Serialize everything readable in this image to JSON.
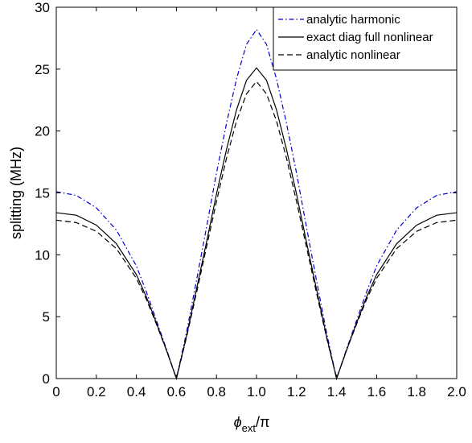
{
  "chart_data": {
    "type": "line",
    "title": "",
    "xlabel": "ϕ",
    "xlabel_sub": "ext",
    "xlabel_suffix": "/π",
    "ylabel": "splitting (MHz)",
    "xlim": [
      0,
      2.0
    ],
    "ylim": [
      0,
      30
    ],
    "xticks": [
      0,
      0.2,
      0.4,
      0.6,
      0.8,
      1.0,
      1.2,
      1.4,
      1.6,
      1.8,
      2.0
    ],
    "xtick_labels": [
      "0",
      "0.2",
      "0.4",
      "0.6",
      "0.8",
      "1.0",
      "1.2",
      "1.4",
      "1.6",
      "1.8",
      "2.0"
    ],
    "yticks": [
      0,
      5,
      10,
      15,
      20,
      25,
      30
    ],
    "ytick_labels": [
      "0",
      "5",
      "10",
      "15",
      "20",
      "25",
      "30"
    ],
    "grid": false,
    "legend_position": "top-right",
    "x": [
      0,
      0.1,
      0.2,
      0.3,
      0.4,
      0.45,
      0.5,
      0.55,
      0.6,
      0.65,
      0.7,
      0.75,
      0.8,
      0.85,
      0.9,
      0.95,
      1.0,
      1.05,
      1.1,
      1.15,
      1.2,
      1.25,
      1.3,
      1.35,
      1.4,
      1.45,
      1.5,
      1.55,
      1.6,
      1.7,
      1.8,
      1.9,
      2.0
    ],
    "series": [
      {
        "name": "analytic harmonic",
        "style": "dashdot",
        "color": "#0000cc",
        "values": [
          15.1,
          14.8,
          13.8,
          12.0,
          9.1,
          7.0,
          4.7,
          2.4,
          0,
          3.7,
          7.9,
          12.2,
          16.6,
          20.6,
          24.2,
          27.0,
          28.2,
          27.0,
          24.2,
          20.6,
          16.6,
          12.2,
          7.9,
          3.7,
          0,
          2.4,
          4.7,
          7.0,
          9.1,
          12.0,
          13.8,
          14.8,
          15.1
        ]
      },
      {
        "name": "exact diag full nonlinear",
        "style": "solid",
        "color": "#000000",
        "values": [
          13.4,
          13.2,
          12.4,
          10.9,
          8.4,
          6.6,
          4.5,
          2.3,
          0,
          3.4,
          7.2,
          11.0,
          14.9,
          18.5,
          21.7,
          24.1,
          25.1,
          24.1,
          21.7,
          18.5,
          14.9,
          11.0,
          7.2,
          3.4,
          0,
          2.3,
          4.5,
          6.6,
          8.4,
          10.9,
          12.4,
          13.2,
          13.4
        ]
      },
      {
        "name": "analytic nonlinear",
        "style": "dashed",
        "color": "#000000",
        "values": [
          12.8,
          12.6,
          11.9,
          10.5,
          8.1,
          6.4,
          4.4,
          2.3,
          0,
          3.3,
          6.9,
          10.6,
          14.3,
          17.8,
          20.8,
          23.0,
          24.0,
          23.0,
          20.8,
          17.8,
          14.3,
          10.6,
          6.9,
          3.3,
          0,
          2.3,
          4.4,
          6.4,
          8.1,
          10.5,
          11.9,
          12.6,
          12.8
        ]
      }
    ]
  }
}
